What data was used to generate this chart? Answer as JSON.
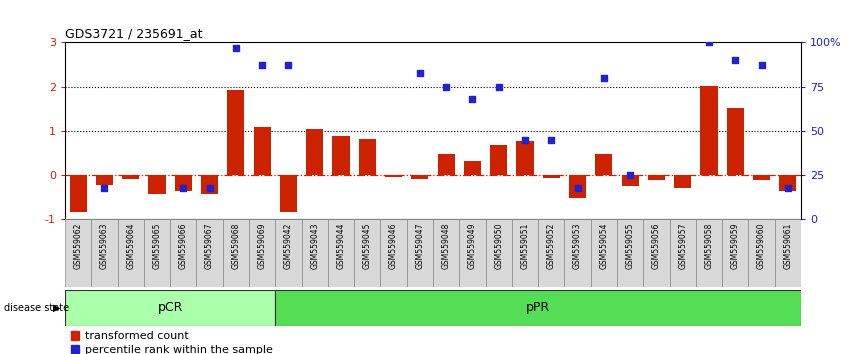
{
  "title": "GDS3721 / 235691_at",
  "samples": [
    "GSM559062",
    "GSM559063",
    "GSM559064",
    "GSM559065",
    "GSM559066",
    "GSM559067",
    "GSM559068",
    "GSM559069",
    "GSM559042",
    "GSM559043",
    "GSM559044",
    "GSM559045",
    "GSM559046",
    "GSM559047",
    "GSM559048",
    "GSM559049",
    "GSM559050",
    "GSM559051",
    "GSM559052",
    "GSM559053",
    "GSM559054",
    "GSM559055",
    "GSM559056",
    "GSM559057",
    "GSM559058",
    "GSM559059",
    "GSM559060",
    "GSM559061"
  ],
  "transformed_count": [
    -0.82,
    -0.22,
    -0.08,
    -0.42,
    -0.35,
    -0.42,
    1.93,
    1.1,
    -0.82,
    1.05,
    0.88,
    0.82,
    -0.04,
    -0.08,
    0.48,
    0.33,
    0.68,
    0.78,
    -0.07,
    -0.52,
    0.48,
    -0.25,
    -0.1,
    -0.28,
    2.02,
    1.52,
    -0.1,
    -0.35
  ],
  "percentile_rank": [
    null,
    18,
    null,
    null,
    18,
    18,
    97,
    87,
    87,
    null,
    null,
    null,
    null,
    83,
    75,
    68,
    75,
    45,
    45,
    18,
    80,
    25,
    null,
    null,
    100,
    90,
    87,
    18
  ],
  "pCR_count": 8,
  "pCR_color": "#aaffaa",
  "pPR_color": "#55dd55",
  "bar_color": "#cc2200",
  "dot_color": "#2222cc",
  "ylim": [
    -1.0,
    3.0
  ],
  "y2lim": [
    0,
    100
  ],
  "y2ticks": [
    0,
    25,
    50,
    75,
    100
  ],
  "y2ticklabels": [
    "0",
    "25",
    "50",
    "75",
    "100%"
  ],
  "yticks": [
    -1,
    0,
    1,
    2,
    3
  ],
  "hline_y": [
    1.0,
    2.0
  ],
  "legend_red": "transformed count",
  "legend_blue": "percentile rank within the sample",
  "bar_width": 0.65
}
